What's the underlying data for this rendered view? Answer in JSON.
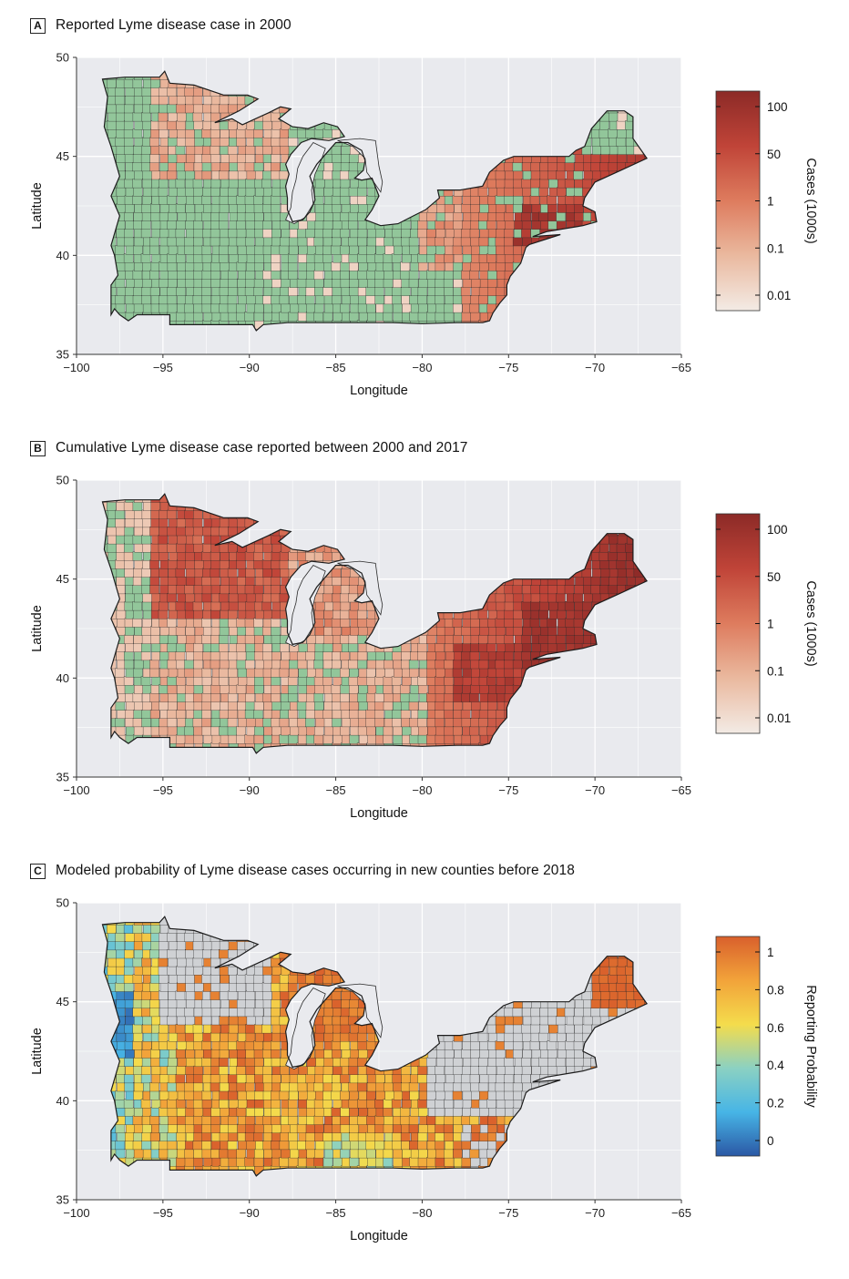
{
  "chart_data": [
    {
      "type": "choropleth-map",
      "panel_letter": "A",
      "title": "Reported Lyme disease case in 2000",
      "xlabel": "Longitude",
      "ylabel": "Latitude",
      "xlim": [
        -100,
        -65
      ],
      "ylim": [
        35,
        50
      ],
      "xticks": [
        -100,
        -95,
        -90,
        -85,
        -80,
        -75,
        -70,
        -65
      ],
      "yticks": [
        35,
        40,
        45,
        50
      ],
      "legend": {
        "title": "Cases (1000s)",
        "ticks": [
          "100",
          "50",
          "1",
          "0.1",
          "0.01"
        ],
        "colors": [
          "#f3ebe5",
          "#eab99f",
          "#de7c5e",
          "#c04438",
          "#8c2a27"
        ],
        "no_data_color": "#92c69a"
      },
      "fill_rule": "a",
      "grid": true,
      "background": "#e9eaee"
    },
    {
      "type": "choropleth-map",
      "panel_letter": "B",
      "title": "Cumulative Lyme disease case reported between 2000 and 2017",
      "xlabel": "Longitude",
      "ylabel": "Latitude",
      "xlim": [
        -100,
        -65
      ],
      "ylim": [
        35,
        50
      ],
      "xticks": [
        -100,
        -95,
        -90,
        -85,
        -80,
        -75,
        -70,
        -65
      ],
      "yticks": [
        35,
        40,
        45,
        50
      ],
      "legend": {
        "title": "Cases (1000s)",
        "ticks": [
          "100",
          "50",
          "1",
          "0.1",
          "0.01"
        ],
        "colors": [
          "#f3ebe5",
          "#eab99f",
          "#de7c5e",
          "#c04438",
          "#8c2a27"
        ],
        "no_data_color": "#92c69a"
      },
      "fill_rule": "b",
      "grid": true,
      "background": "#e9eaee"
    },
    {
      "type": "choropleth-map",
      "panel_letter": "C",
      "title": "Modeled probability of Lyme disease cases occurring in new counties before 2018",
      "xlabel": "Longitude",
      "ylabel": "Latitude",
      "xlim": [
        -100,
        -65
      ],
      "ylim": [
        35,
        50
      ],
      "xticks": [
        -100,
        -95,
        -90,
        -85,
        -80,
        -75,
        -70,
        -65
      ],
      "yticks": [
        35,
        40,
        45,
        50
      ],
      "legend": {
        "title": "Reporting Probability",
        "ticks": [
          "1",
          "0.8",
          "0.6",
          "0.4",
          "0.2",
          "0"
        ],
        "colors": [
          "#2b58a5",
          "#47b5e6",
          "#8bd1c2",
          "#f4dc4c",
          "#f2a33a",
          "#d9602c"
        ],
        "no_data_color": "#cfd1d4"
      },
      "fill_rule": "c",
      "grid": true,
      "background": "#e9eaee"
    }
  ]
}
